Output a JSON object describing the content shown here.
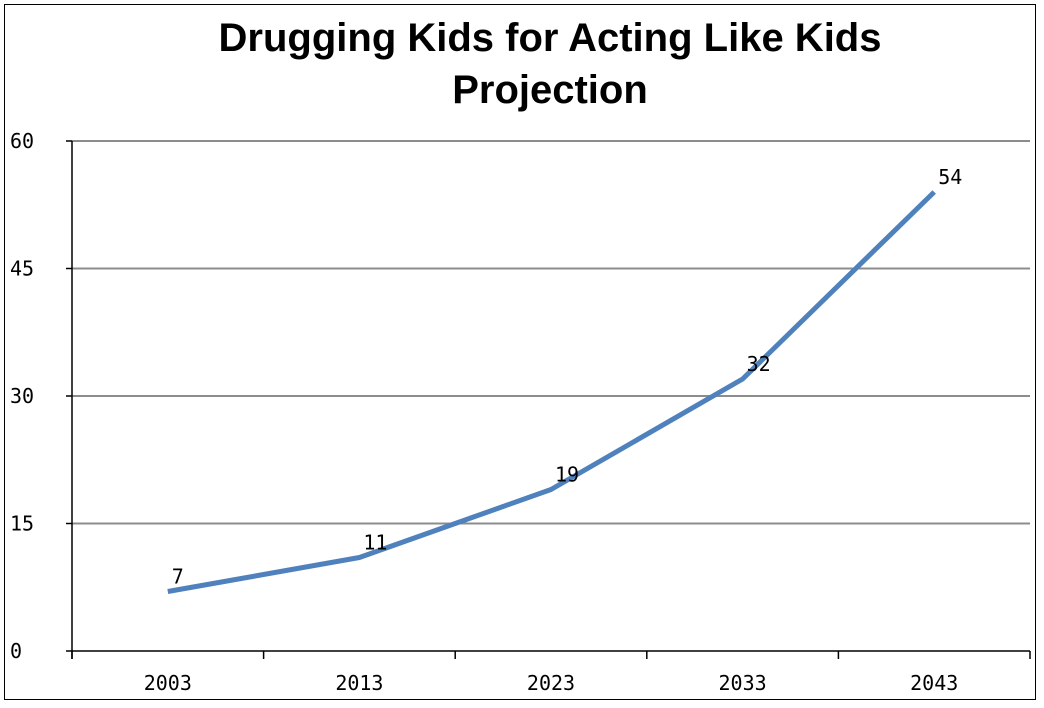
{
  "chart_data": {
    "type": "line",
    "title_lines": [
      "Drugging Kids for Acting Like Kids",
      "Projection"
    ],
    "categories": [
      "2003",
      "2013",
      "2023",
      "2033",
      "2043"
    ],
    "series": [
      {
        "values": [
          7,
          11,
          19,
          32,
          54
        ],
        "color": "#4F81BD"
      }
    ],
    "data_labels": [
      "7",
      "11",
      "19",
      "32",
      "54"
    ],
    "ylim": [
      0,
      60
    ],
    "y_ticks": [
      0,
      15,
      30,
      45,
      60
    ],
    "grid": true,
    "legend": "none",
    "xlabel": "",
    "ylabel": ""
  }
}
